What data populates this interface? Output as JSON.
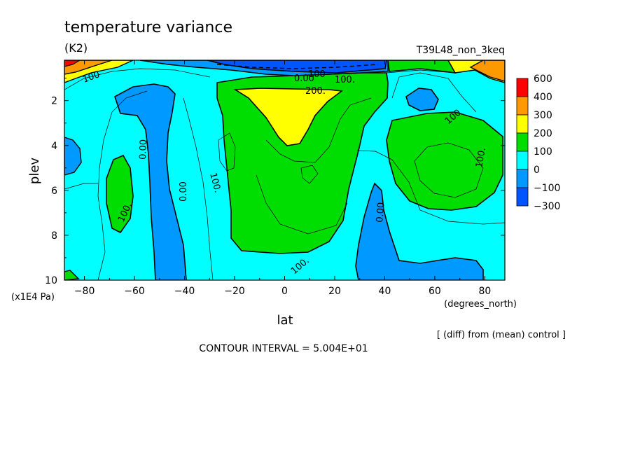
{
  "chart_data": {
    "type": "heatmap",
    "title": "temperature variance",
    "units": "(K2)",
    "run_label": "T39L48_non_3keq",
    "xlabel": "lat",
    "x_units": "(degrees_north)",
    "ylabel": "plev",
    "y_units": "(x1E4 Pa)",
    "diff_note": "[ (diff) from (mean) control ]",
    "contour_interval": "CONTOUR INTERVAL = 5.004E+01",
    "xlim": [
      -88,
      88
    ],
    "ylim": [
      10,
      0.2
    ],
    "x_ticks": [
      -80,
      -60,
      -40,
      -20,
      0,
      20,
      40,
      60,
      80
    ],
    "x_tick_labels": [
      "−80",
      "−60",
      "−40",
      "−20",
      "0",
      "20",
      "40",
      "60",
      "80"
    ],
    "y_ticks": [
      2,
      4,
      6,
      8,
      10
    ],
    "y_tick_labels": [
      "2",
      "4",
      "6",
      "8",
      "10"
    ],
    "colorbar": {
      "levels": [
        "600",
        "400",
        "300",
        "200",
        "100",
        "0",
        "−100",
        "−300"
      ],
      "colors": [
        "#ff0000",
        "#ff9900",
        "#ffff00",
        "#00dd00",
        "#00ffff",
        "#0099ff",
        "#0055ff"
      ]
    },
    "contour_labels": [
      "0.00",
      "100.",
      "100.",
      "200.",
      "100",
      "0.00",
      "100.",
      "0.00",
      "100.",
      "0.00",
      "100",
      "100.",
      "100"
    ],
    "regions": [
      {
        "band": "200-300",
        "x": [
          -15,
          10
        ],
        "y": [
          1.2,
          3.8
        ]
      },
      {
        "band": "100-200",
        "x": [
          -30,
          40
        ],
        "y": [
          1,
          9
        ]
      },
      {
        "band": "100-200",
        "x": [
          50,
          88
        ],
        "y": [
          2.5,
          8
        ]
      },
      {
        "band": "100-200",
        "x": [
          -70,
          -60
        ],
        "y": [
          4.5,
          8
        ]
      },
      {
        "band": "-100-0",
        "x": [
          -70,
          -38
        ],
        "y": [
          1.5,
          10
        ]
      },
      {
        "band": "-100-0",
        "x": [
          32,
          88
        ],
        "y": [
          5.5,
          10
        ]
      },
      {
        "band": "-300--100",
        "x": [
          -20,
          40
        ],
        "y": [
          0.2,
          0.8
        ]
      },
      {
        "band": "400-600",
        "x": [
          -88,
          -80
        ],
        "y": [
          0.2,
          0.6
        ]
      },
      {
        "band": "300-400",
        "x": [
          75,
          88
        ],
        "y": [
          0.2,
          1.2
        ]
      }
    ]
  }
}
